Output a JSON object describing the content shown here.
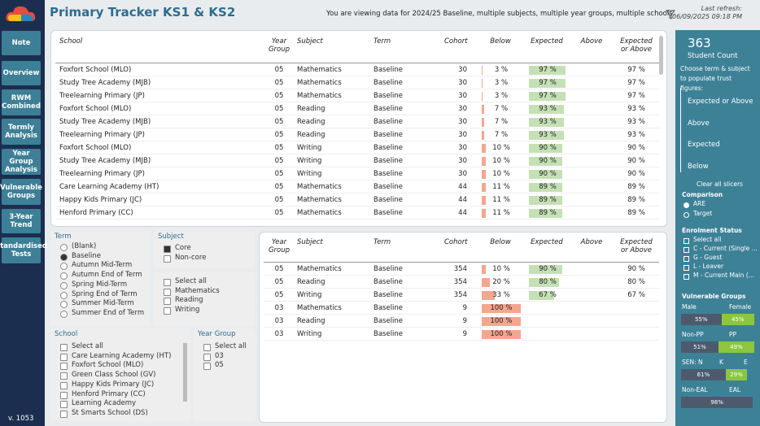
{
  "header": {
    "title": "Primary Tracker KS1 & KS2",
    "info": "You are viewing data for 2024/25 Baseline, multiple subjects, multiple year groups, multiple schools.",
    "refresh_label": "Last refresh:",
    "refresh_time": "06/09/2025 09:18 PM"
  },
  "nav": {
    "items": [
      "Note",
      "Overview",
      "RWM Combined",
      "Termly Analysis",
      "Year Group Analysis",
      "Vulnerable Groups",
      "3-Year Trend",
      "Standardised Tests"
    ],
    "version": "v. 1053"
  },
  "main_table": {
    "columns": [
      "School",
      "Year Group",
      "Subject",
      "Term",
      "Cohort",
      "Below",
      "Expected",
      "Above",
      "Expected or Above"
    ],
    "rows": [
      [
        "Foxfort School (MLO)",
        "05",
        "Mathematics",
        "Baseline",
        "30",
        "3 %",
        "97 %",
        null,
        "97 %"
      ],
      [
        "Study Tree Academy (MJB)",
        "05",
        "Mathematics",
        "Baseline",
        "30",
        "3 %",
        "97 %",
        null,
        "97 %"
      ],
      [
        "Treelearning Primary (JP)",
        "05",
        "Mathematics",
        "Baseline",
        "30",
        "3 %",
        "97 %",
        null,
        "97 %"
      ],
      [
        "Foxfort School (MLO)",
        "05",
        "Reading",
        "Baseline",
        "30",
        "7 %",
        "93 %",
        null,
        "93 %"
      ],
      [
        "Study Tree Academy (MJB)",
        "05",
        "Reading",
        "Baseline",
        "30",
        "7 %",
        "93 %",
        null,
        "93 %"
      ],
      [
        "Treelearning Primary (JP)",
        "05",
        "Reading",
        "Baseline",
        "30",
        "7 %",
        "93 %",
        null,
        "93 %"
      ],
      [
        "Foxfort School (MLO)",
        "05",
        "Writing",
        "Baseline",
        "30",
        "10 %",
        "90 %",
        null,
        "90 %"
      ],
      [
        "Study Tree Academy (MJB)",
        "05",
        "Writing",
        "Baseline",
        "30",
        "10 %",
        "90 %",
        null,
        "90 %"
      ],
      [
        "Treelearning Primary (JP)",
        "05",
        "Writing",
        "Baseline",
        "30",
        "10 %",
        "90 %",
        null,
        "90 %"
      ],
      [
        "Care Learning Academy (HT)",
        "05",
        "Mathematics",
        "Baseline",
        "44",
        "11 %",
        "89 %",
        null,
        "89 %"
      ],
      [
        "Happy Kids Primary (JC)",
        "05",
        "Mathematics",
        "Baseline",
        "44",
        "11 %",
        "89 %",
        null,
        "89 %"
      ],
      [
        "Henford Primary (CC)",
        "05",
        "Mathematics",
        "Baseline",
        "44",
        "11 %",
        "89 %",
        null,
        "89 %"
      ]
    ]
  },
  "summary_table": {
    "columns": [
      "Year Group",
      "Subject",
      "Term",
      "Cohort",
      "Below",
      "Expected",
      "Above",
      "Expected or Above"
    ],
    "rows": [
      [
        "05",
        "Mathematics",
        "Baseline",
        "354",
        "10 %",
        "90 %",
        null,
        "90 %"
      ],
      [
        "05",
        "Reading",
        "Baseline",
        "354",
        "20 %",
        "80 %",
        null,
        "80 %"
      ],
      [
        "05",
        "Writing",
        "Baseline",
        "354",
        "33 %",
        "67 %",
        null,
        "67 %"
      ],
      [
        "03",
        "Mathematics",
        "Baseline",
        "9",
        "100 %",
        null,
        null,
        null
      ],
      [
        "03",
        "Reading",
        "Baseline",
        "9",
        "100 %",
        null,
        null,
        null
      ],
      [
        "03",
        "Writing",
        "Baseline",
        "9",
        "100 %",
        null,
        null,
        null
      ]
    ]
  },
  "slicers": {
    "term": {
      "title": "Term",
      "options": [
        "(Blank)",
        "Baseline",
        "Autumn Mid-Term",
        "Autumn End of Term",
        "Spring Mid-Term",
        "Spring End of Term",
        "Summer Mid-Term",
        "Summer End of Term"
      ],
      "selected": [
        1
      ],
      "style": "radio"
    },
    "subject": {
      "title": "Subject",
      "options": [
        "Core",
        "Non-core"
      ],
      "selected": [
        0
      ],
      "style": "check"
    },
    "subject_detail": {
      "options": [
        "Select all",
        "Mathematics",
        "Reading",
        "Writing"
      ],
      "selected": [],
      "style": "check"
    },
    "school": {
      "title": "School",
      "options": [
        "Select all",
        "Care Learning Academy (HT)",
        "Foxfort School (MLO)",
        "Green Class School (GV)",
        "Happy Kids Primary (JC)",
        "Henford Primary (CC)",
        "Learning Academy",
        "St Smarts School (DS)"
      ],
      "selected": [],
      "style": "check"
    },
    "year_group": {
      "title": "Year Group",
      "options": [
        "Select all",
        "03",
        "05"
      ],
      "selected": [],
      "style": "check"
    }
  },
  "side_panel": {
    "count": "363",
    "count_label": "Student Count",
    "note": "Choose term & subject to populate trust figures:",
    "measures": [
      "Expected or Above",
      "Above",
      "Expected",
      "Below"
    ],
    "clear": "Clear all slicers",
    "comparison": {
      "title": "Comparison",
      "options": [
        "ARE",
        "Target"
      ],
      "selected": [
        0
      ]
    },
    "enrolment": {
      "title": "Enrolment Status",
      "options": [
        "Select all",
        "C - Current (Single ...",
        "G - Guest",
        "L - Leaver",
        "M - Current Main (..."
      ]
    },
    "vulnerable_title": "Vulnerable Groups",
    "groups": [
      {
        "labels": [
          "Male",
          "Female"
        ],
        "values": [
          "55%",
          "45%"
        ]
      },
      {
        "labels": [
          "Non-PP",
          "PP"
        ],
        "values": [
          "51%",
          "49%"
        ]
      },
      {
        "labels": [
          "SEN: N",
          "K",
          "E"
        ],
        "values": [
          "61%",
          "29%"
        ]
      },
      {
        "labels": [
          "Non-EAL",
          "EAL"
        ],
        "values": [
          "98%"
        ]
      }
    ]
  }
}
